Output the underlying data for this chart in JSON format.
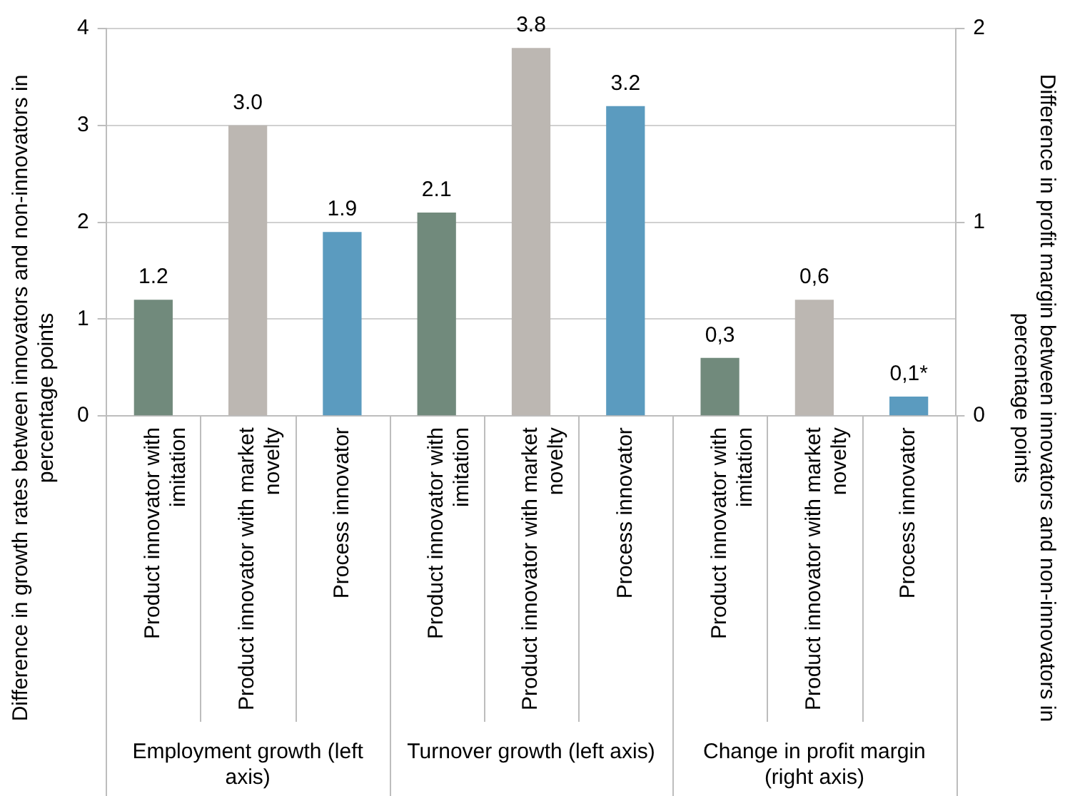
{
  "chart_data": {
    "type": "bar",
    "ylabel": "Difference in growth rates between innovators and non-innovators in percentage points",
    "y2label": "Difference in profit margin between innovators and non-innovators in percentage points",
    "categories": [
      "Product innovator with imitation",
      "Product innovator with market novelty",
      "Process innovator",
      "Product innovator with imitation",
      "Product innovator with market novelty",
      "Process innovator",
      "Product innovator with imitation",
      "Product innovator with market novelty",
      "Process innovator"
    ],
    "annotations": [
      "Employment growth (left axis)",
      "Turnover growth (left axis)",
      "Change in profit margin (right axis)"
    ],
    "series": [
      {
        "values": [
          1.2,
          3.0,
          1.9,
          2.1,
          3.8,
          3.2,
          null,
          null,
          null
        ],
        "colors": [
          "#718a7c",
          "#bcb7b2",
          "#5b9bbf",
          "#718a7c",
          "#bcb7b2",
          "#5b9bbf",
          "#718a7c",
          "#bcb7b2",
          "#5b9bbf"
        ],
        "value_labels": [
          "1.2",
          "3.0",
          "1.9",
          "2.1",
          "3.8",
          "3.2",
          null,
          null,
          null
        ]
      },
      {
        "axis": "y2",
        "values": [
          null,
          null,
          null,
          null,
          null,
          null,
          0.3,
          0.6,
          0.1
        ],
        "colors": [
          "#718a7c",
          "#bcb7b2",
          "#5b9bbf",
          "#718a7c",
          "#bcb7b2",
          "#5b9bbf",
          "#718a7c",
          "#bcb7b2",
          "#5b9bbf"
        ],
        "value_labels": [
          null,
          null,
          null,
          null,
          null,
          null,
          "0,3",
          "0,6",
          "0,1*"
        ]
      }
    ],
    "ylim": [
      0,
      4
    ],
    "yticks": [
      0,
      1,
      2,
      3,
      4
    ],
    "y2lim": [
      0,
      2
    ],
    "y2ticks": [
      0,
      1,
      2
    ],
    "grid": "y",
    "legend": false
  }
}
